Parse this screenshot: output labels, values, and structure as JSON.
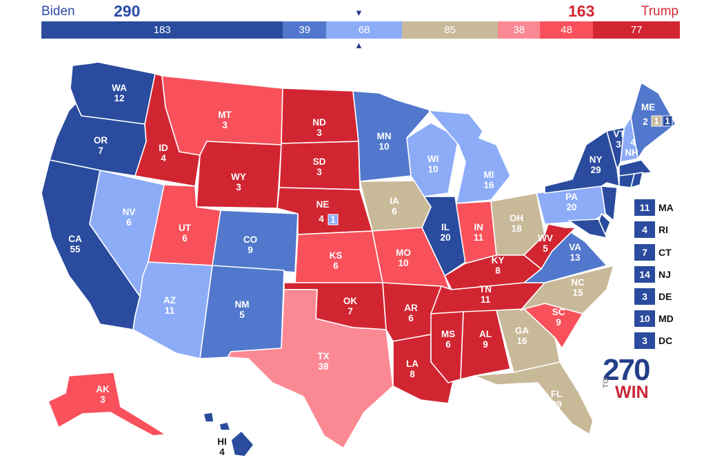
{
  "header": {
    "biden_label": "Biden",
    "biden_total": "290",
    "trump_label": "Trump",
    "trump_total": "163",
    "arrow_top": "▼",
    "arrow_bottom": "▲"
  },
  "bar": [
    {
      "value": "183",
      "color": "#2a4b9e"
    },
    {
      "value": "39",
      "color": "#5178cc"
    },
    {
      "value": "68",
      "color": "#8cacf8"
    },
    {
      "value": "85",
      "color": "#c8b998"
    },
    {
      "value": "38",
      "color": "#fb8994"
    },
    {
      "value": "48",
      "color": "#f8515b"
    },
    {
      "value": "77",
      "color": "#d22532"
    }
  ],
  "colors": {
    "safe_dem": "#2a4b9e",
    "likely_dem": "#5178cc",
    "lean_dem": "#8cacf8",
    "tossup": "#c8b998",
    "lean_rep": "#fb8994",
    "likely_rep": "#f8515b",
    "safe_rep": "#d22532"
  },
  "states": [
    {
      "abbr": "WA",
      "ev": "12"
    },
    {
      "abbr": "OR",
      "ev": "7"
    },
    {
      "abbr": "CA",
      "ev": "55"
    },
    {
      "abbr": "ID",
      "ev": "4"
    },
    {
      "abbr": "NV",
      "ev": "6"
    },
    {
      "abbr": "MT",
      "ev": "3"
    },
    {
      "abbr": "WY",
      "ev": "3"
    },
    {
      "abbr": "UT",
      "ev": "6"
    },
    {
      "abbr": "AZ",
      "ev": "11"
    },
    {
      "abbr": "CO",
      "ev": "9"
    },
    {
      "abbr": "NM",
      "ev": "5"
    },
    {
      "abbr": "ND",
      "ev": "3"
    },
    {
      "abbr": "SD",
      "ev": "3"
    },
    {
      "abbr": "NE",
      "ev": "4"
    },
    {
      "abbr": "KS",
      "ev": "6"
    },
    {
      "abbr": "OK",
      "ev": "7"
    },
    {
      "abbr": "TX",
      "ev": "38"
    },
    {
      "abbr": "MN",
      "ev": "10"
    },
    {
      "abbr": "IA",
      "ev": "6"
    },
    {
      "abbr": "MO",
      "ev": "10"
    },
    {
      "abbr": "AR",
      "ev": "6"
    },
    {
      "abbr": "LA",
      "ev": "8"
    },
    {
      "abbr": "WI",
      "ev": "10"
    },
    {
      "abbr": "IL",
      "ev": "20"
    },
    {
      "abbr": "MI",
      "ev": "16"
    },
    {
      "abbr": "IN",
      "ev": "11"
    },
    {
      "abbr": "OH",
      "ev": "18"
    },
    {
      "abbr": "KY",
      "ev": "8"
    },
    {
      "abbr": "TN",
      "ev": "11"
    },
    {
      "abbr": "MS",
      "ev": "6"
    },
    {
      "abbr": "AL",
      "ev": "9"
    },
    {
      "abbr": "GA",
      "ev": "16"
    },
    {
      "abbr": "FL",
      "ev": "29"
    },
    {
      "abbr": "SC",
      "ev": "9"
    },
    {
      "abbr": "NC",
      "ev": "15"
    },
    {
      "abbr": "VA",
      "ev": "13"
    },
    {
      "abbr": "WV",
      "ev": "5"
    },
    {
      "abbr": "PA",
      "ev": "20"
    },
    {
      "abbr": "NY",
      "ev": "29"
    },
    {
      "abbr": "VT",
      "ev": "3"
    },
    {
      "abbr": "NH",
      "ev": "4"
    },
    {
      "abbr": "ME",
      "ev": "2"
    },
    {
      "abbr": "AK",
      "ev": "3"
    },
    {
      "abbr": "HI",
      "ev": "4"
    }
  ],
  "district_badges": {
    "ne2": "1",
    "me2": "1",
    "me1": "1"
  },
  "legend": [
    {
      "ev": "11",
      "abbr": "MA"
    },
    {
      "ev": "4",
      "abbr": "RI"
    },
    {
      "ev": "7",
      "abbr": "CT"
    },
    {
      "ev": "14",
      "abbr": "NJ"
    },
    {
      "ev": "3",
      "abbr": "DE"
    },
    {
      "ev": "10",
      "abbr": "MD"
    },
    {
      "ev": "3",
      "abbr": "DC"
    }
  ],
  "logo": {
    "number": "270",
    "to": "TO",
    "win": "WIN"
  }
}
